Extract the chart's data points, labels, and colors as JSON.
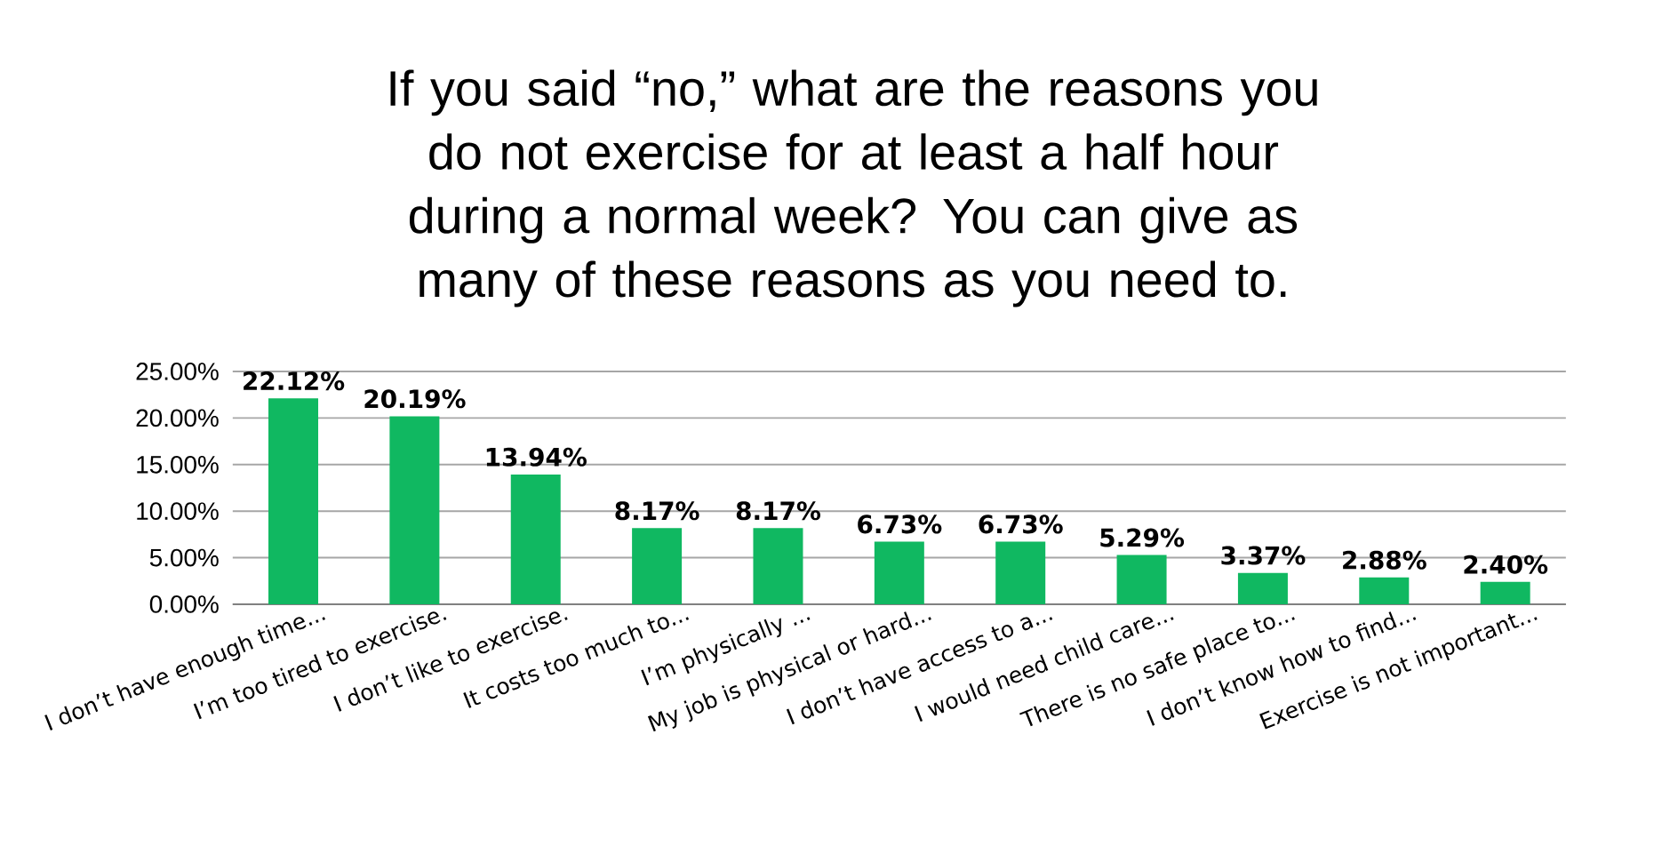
{
  "chart_data": {
    "type": "bar",
    "title": "If you said “no,” what are the reasons you do not exercise for at least a half hour during a normal week? You can give as many of these reasons as you need to.",
    "categories": [
      "I don’t have enough time...",
      "I’m too tired to exercise.",
      "I don’t like to exercise.",
      "It costs too much to...",
      "I’m physically ...",
      "My job is physical or hard...",
      "I don’t have access to a...",
      "I would need child care...",
      "There is no safe place to...",
      "I don’t know how to find...",
      "Exercise is not important..."
    ],
    "values": [
      22.12,
      20.19,
      13.94,
      8.17,
      8.17,
      6.73,
      6.73,
      5.29,
      3.37,
      2.88,
      2.4
    ],
    "value_labels": [
      "22.12%",
      "20.19%",
      "13.94%",
      "8.17%",
      "8.17%",
      "6.73%",
      "6.73%",
      "5.29%",
      "3.37%",
      "2.88%",
      "2.40%"
    ],
    "color": "#10b861",
    "ylim": [
      0,
      25
    ],
    "yticks": [
      {
        "value": 0,
        "label": "0.00%"
      },
      {
        "value": 5,
        "label": "5.00%"
      },
      {
        "value": 10,
        "label": "10.00%"
      },
      {
        "value": 15,
        "label": "15.00%"
      },
      {
        "value": 20,
        "label": "20.00%"
      },
      {
        "value": 25,
        "label": "25.00%"
      }
    ],
    "grid": "y"
  }
}
